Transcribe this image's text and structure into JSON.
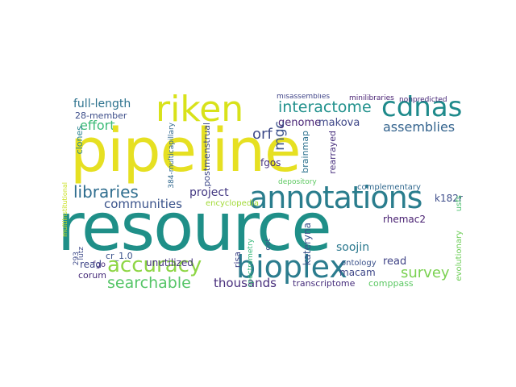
{
  "wordcloud": {
    "words": [
      {
        "key": "pipeline",
        "text": "pipeline",
        "color": "#e6e022"
      },
      {
        "key": "resource",
        "text": "resource",
        "color": "#1f8f88"
      },
      {
        "key": "riken",
        "text": "riken",
        "color": "#d8e21a"
      },
      {
        "key": "cdnas",
        "text": "cdnas",
        "color": "#1e8a8b"
      },
      {
        "key": "annotations",
        "text": "annotations",
        "color": "#2a7d8d"
      },
      {
        "key": "bioplex",
        "text": "bioplex",
        "color": "#2b7c8e"
      },
      {
        "key": "accuracy",
        "text": "accuracy",
        "color": "#8ed645"
      },
      {
        "key": "searchable",
        "text": "searchable",
        "color": "#55c567"
      },
      {
        "key": "libraries",
        "text": "libraries",
        "color": "#2e6d8e"
      },
      {
        "key": "survey",
        "text": "survey",
        "color": "#7ad151"
      },
      {
        "key": "communities",
        "text": "communities",
        "color": "#3a538b"
      },
      {
        "key": "interactome",
        "text": "interactome",
        "color": "#21918c"
      },
      {
        "key": "full_length",
        "text": "full-length",
        "color": "#2c728e"
      },
      {
        "key": "effort",
        "text": "effort",
        "color": "#3aba76"
      },
      {
        "key": "assemblies",
        "text": "assemblies",
        "color": "#33638d"
      },
      {
        "key": "orf",
        "text": "orf",
        "color": "#3e4a89"
      },
      {
        "key": "mgc",
        "text": "mgc",
        "color": "#3b528b"
      },
      {
        "key": "project",
        "text": "project",
        "color": "#443983"
      },
      {
        "key": "thousands",
        "text": "thousands",
        "color": "#472d7b"
      },
      {
        "key": "database",
        "text": "database",
        "color": "#414487"
      },
      {
        "key": "read",
        "text": "read",
        "color": "#404688"
      },
      {
        "key": "corum",
        "text": "corum",
        "color": "#472c7a"
      },
      {
        "key": "unutilized",
        "text": "unutilized",
        "color": "#46337f"
      },
      {
        "key": "macam",
        "text": "macam",
        "color": "#3f4889"
      },
      {
        "key": "soojin",
        "text": "soojin",
        "color": "#2a788e"
      },
      {
        "key": "rhemac2",
        "text": "rhemac2",
        "color": "#482071"
      },
      {
        "key": "transcriptome",
        "text": "transcriptome",
        "color": "#472e7c"
      },
      {
        "key": "comppass",
        "text": "comppass",
        "color": "#5cc863"
      },
      {
        "key": "kateryna",
        "text": "kateryna",
        "color": "#3a538b"
      },
      {
        "key": "risa",
        "text": "risa",
        "color": "#404688"
      },
      {
        "key": "brainmap",
        "text": "brainmap",
        "color": "#2c718e"
      },
      {
        "key": "rearrayed",
        "text": "rearrayed",
        "color": "#472f7d"
      },
      {
        "key": "genome",
        "text": "genome",
        "color": "#482475"
      },
      {
        "key": "makova",
        "text": "makova",
        "color": "#3f4788"
      },
      {
        "key": "fgos",
        "text": "fgos",
        "color": "#46307e"
      },
      {
        "key": "postmenstrual",
        "text": "postmenstrual",
        "color": "#3e4989"
      },
      {
        "key": "encyclopedia",
        "text": "encyclopedia",
        "color": "#a2da37"
      },
      {
        "key": "depository",
        "text": "depository",
        "color": "#5ec962"
      },
      {
        "key": "complementary",
        "text": "complementary",
        "color": "#31688e"
      },
      {
        "key": "k182r",
        "text": "k182r",
        "color": "#3d4d8a"
      },
      {
        "key": "usfs",
        "text": "usfs",
        "color": "#4ac16d"
      },
      {
        "key": "cr_1_0",
        "text": "cr_1.0",
        "color": "#3b528b"
      },
      {
        "key": "fgo",
        "text": "fgo",
        "color": "#482878"
      },
      {
        "key": "m28_member",
        "text": "28-member",
        "color": "#3d4e8a"
      },
      {
        "key": "m384",
        "text": "384-multicapillary",
        "color": "#31688e"
      },
      {
        "key": "clones",
        "text": "clones",
        "color": "#26828e"
      },
      {
        "key": "misassemblies",
        "text": "misassemblies",
        "color": "#404588"
      },
      {
        "key": "minilibraries",
        "text": "minilibraries",
        "color": "#482173"
      },
      {
        "key": "nonpredicted",
        "text": "nonpredicted",
        "color": "#482979"
      },
      {
        "key": "ontology",
        "text": "ontology",
        "color": "#3b528b"
      },
      {
        "key": "evolutionary",
        "text": "evolutionary",
        "color": "#6ece58"
      },
      {
        "key": "multiinstitutional",
        "text": "multiinstitutional",
        "color": "#c8e020"
      },
      {
        "key": "spectrometry",
        "text": "spectrometry",
        "color": "#35b779"
      },
      {
        "key": "oet",
        "text": "oet",
        "color": "#3b528b"
      },
      {
        "key": "lutz",
        "text": "lutz",
        "color": "#3e4a89"
      },
      {
        "key": "m293",
        "text": "293",
        "color": "#3e4a89"
      }
    ]
  }
}
